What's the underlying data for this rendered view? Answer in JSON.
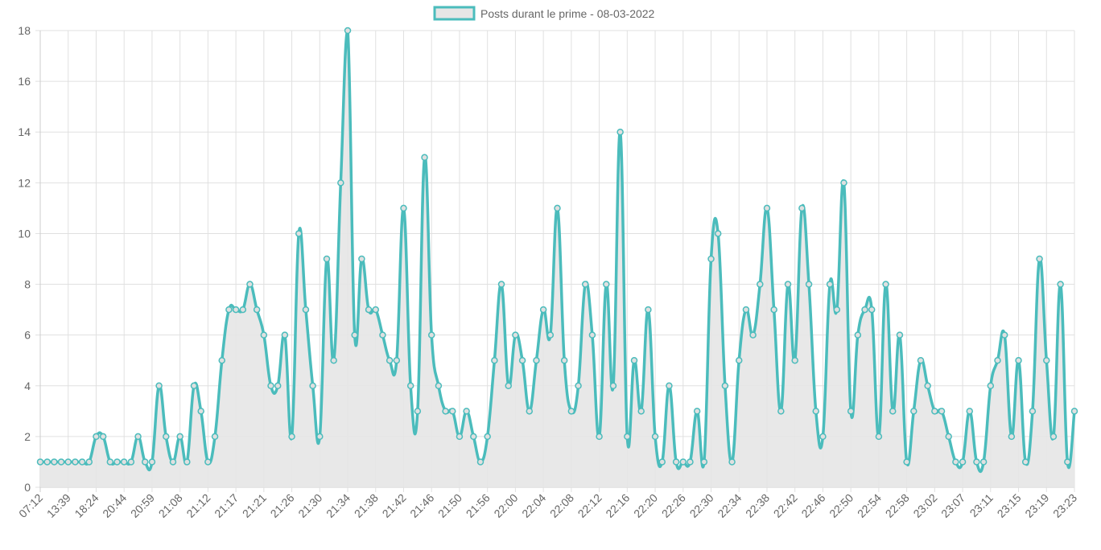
{
  "chart_data": {
    "type": "area",
    "legend": {
      "label": "Posts durant le prime - 08-03-2022",
      "position": "top"
    },
    "colors": {
      "line": "#4bbcbc",
      "fill": "#e6e6e6",
      "grid": "#e0e0e0",
      "tick_text": "#666666"
    },
    "ylim": [
      0,
      18
    ],
    "y_ticks": [
      0,
      2,
      4,
      6,
      8,
      10,
      12,
      14,
      16,
      18
    ],
    "grid": true,
    "x_tick_labels": [
      "07:12",
      "13:39",
      "18:24",
      "20:44",
      "20:59",
      "21:08",
      "21:12",
      "21:17",
      "21:21",
      "21:26",
      "21:30",
      "21:34",
      "21:38",
      "21:42",
      "21:46",
      "21:50",
      "21:56",
      "22:00",
      "22:04",
      "22:08",
      "22:12",
      "22:16",
      "22:20",
      "22:26",
      "22:30",
      "22:34",
      "22:38",
      "22:42",
      "22:46",
      "22:50",
      "22:54",
      "22:58",
      "23:02",
      "23:07",
      "23:11",
      "23:15",
      "23:19",
      "23:23"
    ],
    "values": [
      1,
      1,
      1,
      1,
      1,
      1,
      1,
      1,
      2,
      2,
      1,
      1,
      1,
      1,
      2,
      1,
      1,
      4,
      2,
      1,
      2,
      1,
      4,
      3,
      1,
      2,
      5,
      7,
      7,
      7,
      8,
      7,
      6,
      4,
      4,
      6,
      2,
      10,
      7,
      4,
      2,
      9,
      5,
      12,
      18,
      6,
      9,
      7,
      7,
      6,
      5,
      5,
      11,
      4,
      3,
      13,
      6,
      4,
      3,
      3,
      2,
      3,
      2,
      1,
      2,
      5,
      8,
      4,
      6,
      5,
      3,
      5,
      7,
      6,
      11,
      5,
      3,
      4,
      8,
      6,
      2,
      8,
      4,
      14,
      2,
      5,
      3,
      7,
      2,
      1,
      4,
      1,
      1,
      1,
      3,
      1,
      9,
      10,
      4,
      1,
      5,
      7,
      6,
      8,
      11,
      7,
      3,
      8,
      5,
      11,
      8,
      3,
      2,
      8,
      7,
      12,
      3,
      6,
      7,
      7,
      2,
      8,
      3,
      6,
      1,
      3,
      5,
      4,
      3,
      3,
      2,
      1,
      1,
      3,
      1,
      1,
      4,
      5,
      6,
      2,
      5,
      1,
      3,
      9,
      5,
      2,
      8,
      1,
      3
    ]
  }
}
